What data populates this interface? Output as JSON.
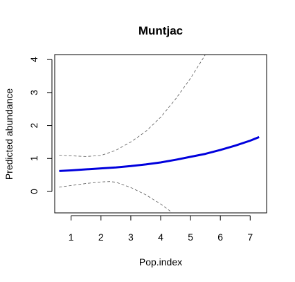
{
  "chart_data": {
    "type": "line",
    "title": "Muntjac",
    "xlabel": "Pop.index",
    "ylabel": "Predicted abundance",
    "xlim": [
      0.45,
      7.55
    ],
    "ylim": [
      -0.65,
      4.15
    ],
    "x_ticks": [
      "1",
      "2",
      "3",
      "4",
      "5",
      "6",
      "7"
    ],
    "y_ticks": [
      "0",
      "1",
      "2",
      "3",
      "4"
    ],
    "grid": false,
    "series": [
      {
        "role": "fit",
        "color": "#0000dd",
        "style": "solid",
        "x": [
          0.6,
          1.0,
          1.5,
          2.0,
          2.5,
          3.0,
          3.5,
          4.0,
          4.5,
          5.0,
          5.5,
          6.0,
          6.5,
          7.0,
          7.3
        ],
        "y": [
          0.62,
          0.64,
          0.67,
          0.7,
          0.73,
          0.77,
          0.82,
          0.88,
          0.96,
          1.05,
          1.14,
          1.26,
          1.39,
          1.54,
          1.65
        ]
      },
      {
        "role": "upper",
        "color": "#555555",
        "style": "dashed",
        "x": [
          0.6,
          1.0,
          1.5,
          2.0,
          2.5,
          3.0,
          3.5,
          4.0,
          4.5,
          5.0,
          5.5
        ],
        "y": [
          1.1,
          1.08,
          1.06,
          1.09,
          1.25,
          1.5,
          1.82,
          2.25,
          2.8,
          3.43,
          4.15
        ]
      },
      {
        "role": "lower",
        "color": "#555555",
        "style": "dashed",
        "x": [
          0.6,
          1.0,
          1.5,
          2.0,
          2.3,
          2.5,
          3.0,
          3.5,
          4.0,
          4.4
        ],
        "y": [
          0.13,
          0.18,
          0.24,
          0.29,
          0.3,
          0.28,
          0.12,
          -0.1,
          -0.38,
          -0.65
        ]
      }
    ]
  }
}
